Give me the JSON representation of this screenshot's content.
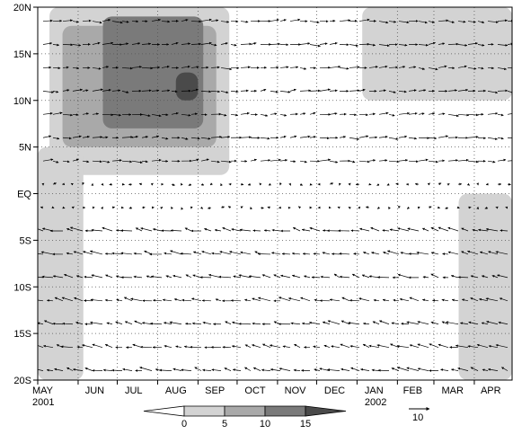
{
  "chart_data": {
    "type": "heatmap",
    "title": "",
    "xlabel": "",
    "ylabel": "",
    "x_ticks": [
      "MAY",
      "JUN",
      "JUL",
      "AUG",
      "SEP",
      "OCT",
      "NOV",
      "DEC",
      "JAN",
      "FEB",
      "MAR",
      "APR"
    ],
    "x_year_labels": [
      {
        "month": "MAY",
        "year": "2001"
      },
      {
        "month": "JAN",
        "year": "2002"
      }
    ],
    "xlim": [
      "2001-05-01",
      "2002-04-30"
    ],
    "y_ticks": [
      "20S",
      "15S",
      "10S",
      "5S",
      "EQ",
      "5N",
      "10N",
      "15N",
      "20N"
    ],
    "ylim": [
      -20,
      20
    ],
    "grid": true,
    "grid_style": "dotted",
    "colorbar": {
      "levels": [
        "0",
        "5",
        "10",
        "15"
      ],
      "colors": [
        "#ffffff",
        "#d3d3d3",
        "#a9a9a9",
        "#7a7a7a",
        "#4a4a4a",
        "#000000"
      ]
    },
    "vector_reference": {
      "label": "10",
      "value": 10
    },
    "shaded_regions": [
      {
        "level": 0,
        "lat_range": [
          2,
          20
        ],
        "time_range": [
          "2001-05-10",
          "2001-09-25"
        ]
      },
      {
        "level": 0,
        "lat_range": [
          -20,
          5
        ],
        "time_range": [
          "2001-05-01",
          "2001-06-05"
        ]
      },
      {
        "level": 0,
        "lat_range": [
          10,
          20
        ],
        "time_range": [
          "2002-01-05",
          "2002-04-30"
        ]
      },
      {
        "level": 0,
        "lat_range": [
          -20,
          0
        ],
        "time_range": [
          "2002-03-20",
          "2002-04-30"
        ]
      },
      {
        "level": 5,
        "lat_range": [
          5,
          18
        ],
        "time_range": [
          "2001-05-20",
          "2001-09-15"
        ]
      },
      {
        "level": 10,
        "lat_range": [
          7,
          19
        ],
        "time_range": [
          "2001-06-20",
          "2001-09-05"
        ]
      },
      {
        "level": 15,
        "lat_range": [
          10,
          13
        ],
        "time_range": [
          "2001-08-15",
          "2001-09-01"
        ]
      }
    ]
  }
}
